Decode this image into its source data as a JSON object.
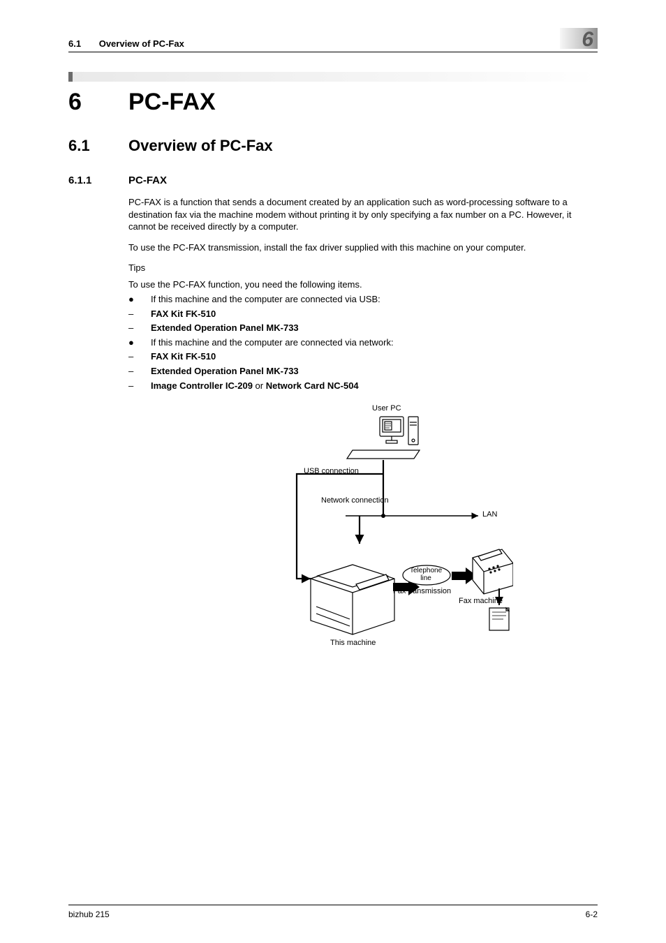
{
  "colors": {
    "text": "#000000",
    "page_bg": "#ffffff",
    "header_grad_start": "#f7f7f7",
    "header_grad_mid": "#c8c8c8",
    "header_grad_end": "#8f8f8f",
    "chapter_number_color": "#5a5a5a",
    "accent_dark": "#6b6b6b",
    "accent_fade_start": "#e9e9e9",
    "diagram_line": "#000000",
    "diagram_fill": "#ffffff"
  },
  "header": {
    "section_number": "6.1",
    "section_title": "Overview of PC-Fax",
    "chapter_badge": "6"
  },
  "h1": {
    "num": "6",
    "title": "PC-FAX"
  },
  "h2": {
    "num": "6.1",
    "title": "Overview of PC-Fax"
  },
  "h3": {
    "num": "6.1.1",
    "title": "PC-FAX"
  },
  "paragraphs": {
    "p1": "PC-FAX is a function that sends a document created by an application such as word-processing software to a destination fax via the machine modem without printing it by only specifying a fax number on a PC. However, it cannot be received directly by a computer.",
    "p2": "To use the PC-FAX transmission, install the fax driver supplied with this machine on your computer.",
    "tips_label": "Tips",
    "p3": "To use the PC-FAX function, you need the following items."
  },
  "list": [
    {
      "marker": "●",
      "text": "If this machine and the computer are connected via USB:",
      "bold": false
    },
    {
      "marker": "–",
      "text": "FAX Kit FK-510",
      "bold": true
    },
    {
      "marker": "–",
      "text": "Extended Operation Panel MK-733",
      "bold": true
    },
    {
      "marker": "●",
      "text": "If this machine and the computer are connected via network:",
      "bold": false
    },
    {
      "marker": "–",
      "text": "FAX Kit FK-510",
      "bold": true
    },
    {
      "marker": "–",
      "text": "Extended Operation Panel MK-733",
      "bold": true
    },
    {
      "marker": "–",
      "text_parts": [
        "Image Controller IC-209",
        " or ",
        "Network Card NC-504"
      ],
      "bold_pattern": [
        true,
        false,
        true
      ]
    }
  ],
  "diagram": {
    "labels": {
      "user_pc": "User PC",
      "usb_connection": "USB connection",
      "network_connection": "Network connection",
      "lan": "LAN",
      "telephone_line": "Telephone line",
      "fax_transmission": "Fax transmission",
      "fax_machine": "Fax machine",
      "this_machine": "This machine"
    },
    "label_fontsize": 11,
    "line_width": 1.4,
    "thick_line_width": 2.2,
    "arrow_fill": "#000000"
  },
  "footer": {
    "left": "bizhub 215",
    "right": "6-2"
  }
}
